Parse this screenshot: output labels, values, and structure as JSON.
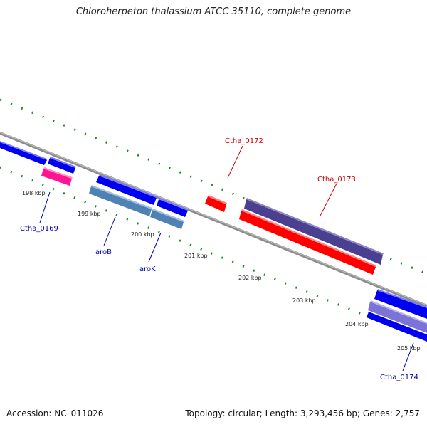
{
  "title": "Chloroherpeton thalassium ATCC 35110, complete genome",
  "footer": {
    "accession": "Accession: NC_011026",
    "summary": "Topology: circular; Length: 3,293,456 bp; Genes: 2,757"
  },
  "scale_labels": [
    "198 kbp",
    "199 kbp",
    "200 kbp",
    "201 kbp",
    "202 kbp",
    "203 kbp",
    "204 kbp",
    "205 kbp"
  ],
  "gene_labels": [
    {
      "text": "Ctha_0172",
      "color": "#cc0000"
    },
    {
      "text": "Ctha_0173",
      "color": "#cc0000"
    },
    {
      "text": "Ctha_0169",
      "color": "#0000aa"
    },
    {
      "text": "aroB",
      "color": "#0000aa"
    },
    {
      "text": "aroK",
      "color": "#0000aa"
    },
    {
      "text": "Ctha_0174",
      "color": "#0000aa"
    }
  ],
  "colors": {
    "backbone": "#8c8c8c",
    "tick": "#1a8c1a",
    "forward_gene": "#ff0000",
    "reverse_gene": "#0000ee",
    "rna_gene": "#ff1493",
    "steel_gene": "#4f81b4",
    "purple_gene": "#4b3f8f"
  }
}
